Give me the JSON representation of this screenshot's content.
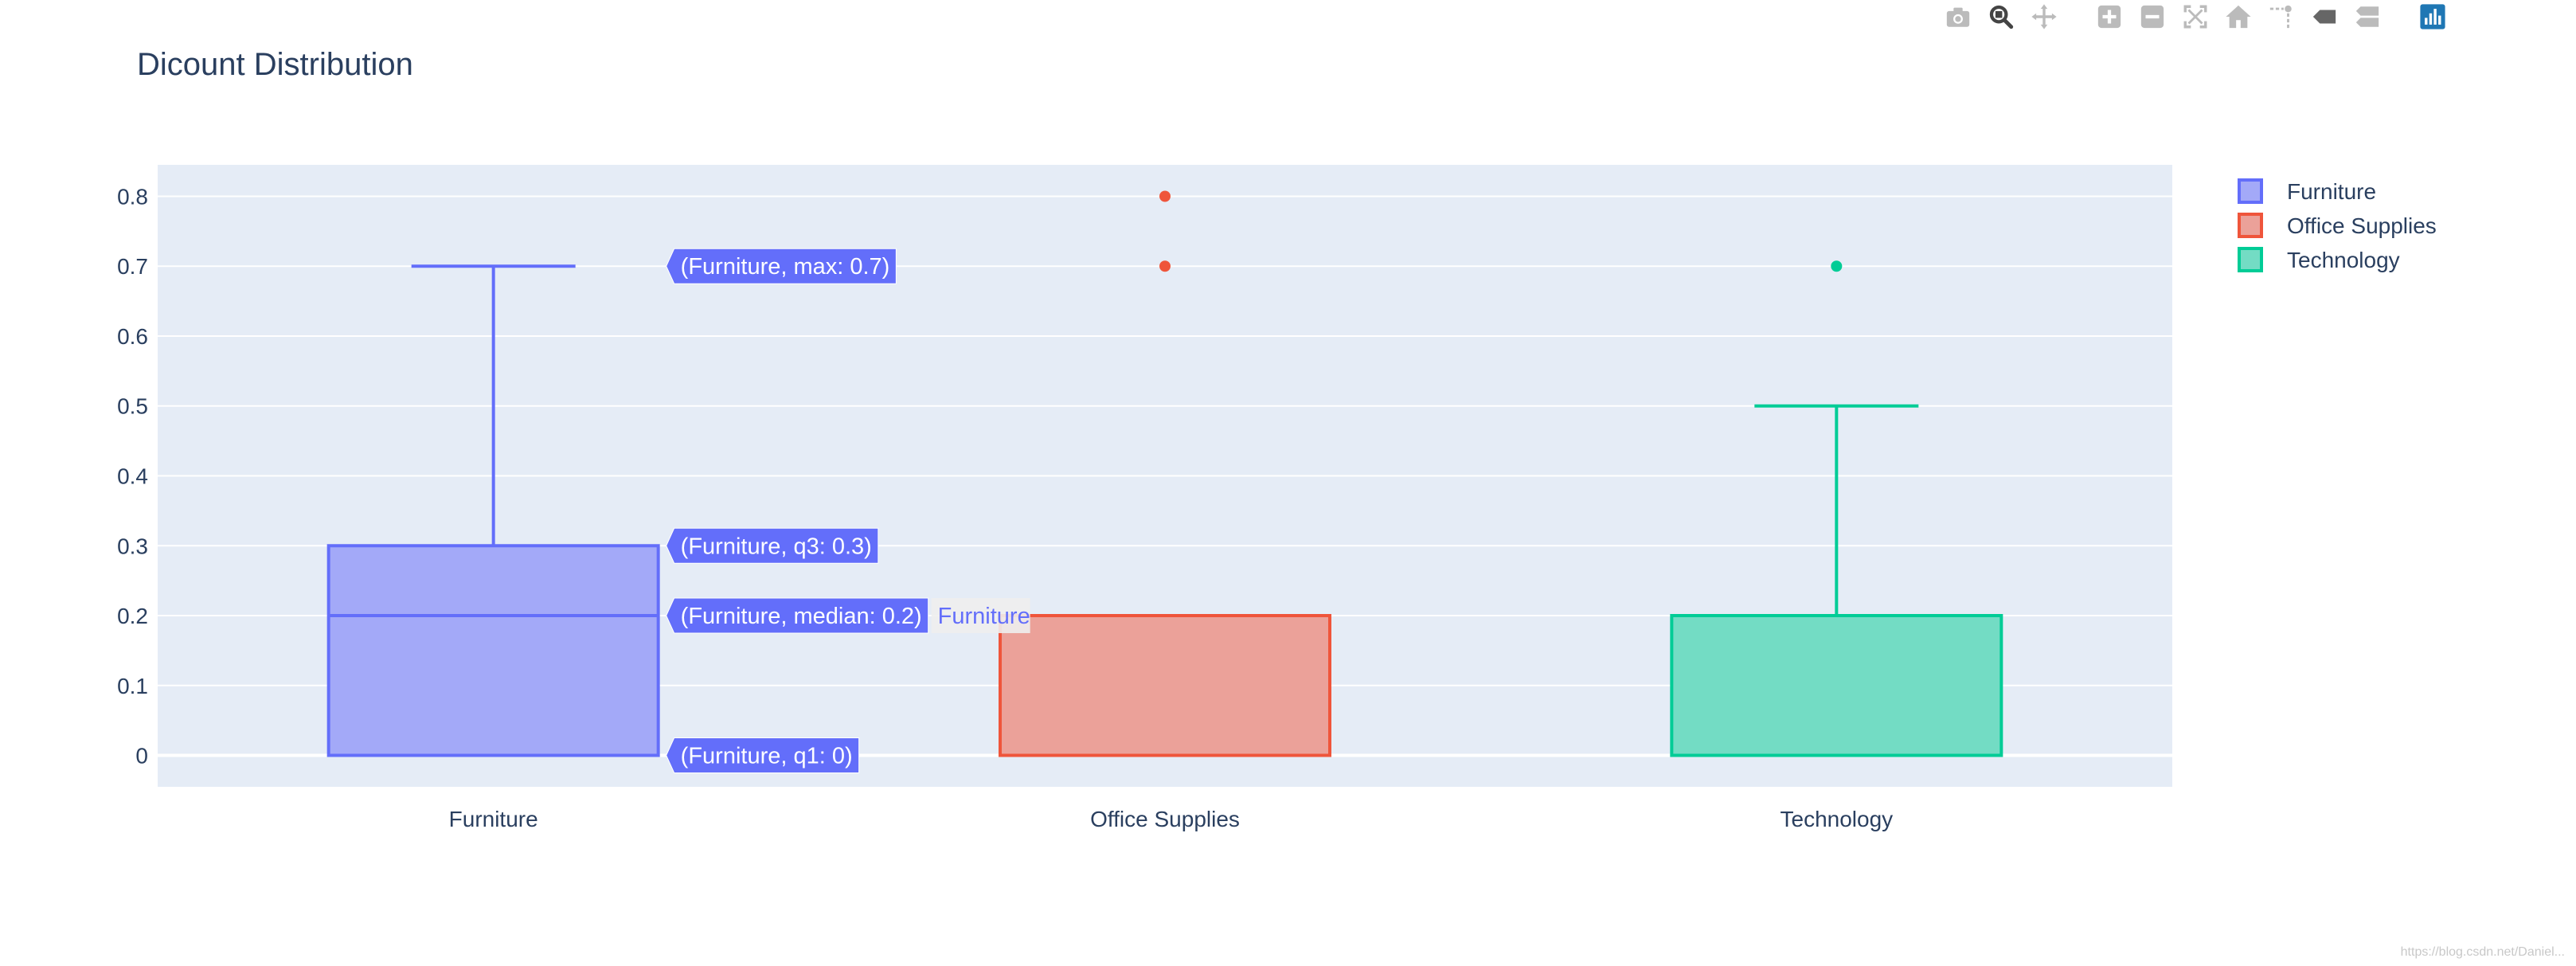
{
  "modebar": {
    "buttons": [
      {
        "name": "camera-icon",
        "label": "Download plot as a png"
      },
      {
        "name": "zoom-icon",
        "label": "Zoom"
      },
      {
        "name": "pan-icon",
        "label": "Pan"
      },
      {
        "name": "zoom-in-icon",
        "label": "Zoom in"
      },
      {
        "name": "zoom-out-icon",
        "label": "Zoom out"
      },
      {
        "name": "autoscale-icon",
        "label": "Autoscale"
      },
      {
        "name": "home-icon",
        "label": "Reset axes"
      },
      {
        "name": "spike-lines-icon",
        "label": "Toggle Spike Lines"
      },
      {
        "name": "hover-closest-icon",
        "label": "Show closest data on hover"
      },
      {
        "name": "hover-compare-icon",
        "label": "Compare data on hover"
      },
      {
        "name": "plotly-logo-icon",
        "label": "Produced with Plotly"
      }
    ],
    "active_color": "#1f77b4"
  },
  "watermark": "https://blog.csdn.net/Daniel...",
  "chart_data": {
    "type": "box",
    "title": "Dicount Distribution",
    "xlabel": "",
    "ylabel": "",
    "categories": [
      "Furniture",
      "Office Supplies",
      "Technology"
    ],
    "ylim": [
      -0.045,
      0.845
    ],
    "yticks": [
      0,
      0.1,
      0.2,
      0.3,
      0.4,
      0.5,
      0.6,
      0.7,
      0.8
    ],
    "ytick_labels": [
      "0",
      "0.1",
      "0.2",
      "0.3",
      "0.4",
      "0.5",
      "0.6",
      "0.7",
      "0.8"
    ],
    "grid": true,
    "plot_bgcolor": "#E5ECF6",
    "legend_position": "top-right",
    "series": [
      {
        "name": "Furniture",
        "color": "#636EFA",
        "fill": "#A3A9F8",
        "lowerfence": 0,
        "q1": 0,
        "median": 0.2,
        "q3": 0.3,
        "upperfence": 0.7,
        "outliers": []
      },
      {
        "name": "Office Supplies",
        "color": "#EF553B",
        "fill": "#EBA199",
        "lowerfence": 0,
        "q1": 0,
        "median": 0.2,
        "q3": 0.2,
        "upperfence": 0.2,
        "outliers": [
          0.7,
          0.8
        ]
      },
      {
        "name": "Technology",
        "color": "#00CC96",
        "fill": "#73DCC4",
        "lowerfence": 0,
        "q1": 0,
        "median": 0.2,
        "q3": 0.2,
        "upperfence": 0.5,
        "outliers": [
          0.7
        ]
      }
    ],
    "hover_labels": [
      {
        "text": "(Furniture, max: 0.7)",
        "value": 0.7
      },
      {
        "text": "(Furniture, q3: 0.3)",
        "value": 0.3
      },
      {
        "text": "(Furniture, median: 0.2)",
        "value": 0.2
      },
      {
        "text": "(Furniture, q1: 0)",
        "value": 0
      }
    ],
    "hover_trace_name": "Furniture"
  }
}
